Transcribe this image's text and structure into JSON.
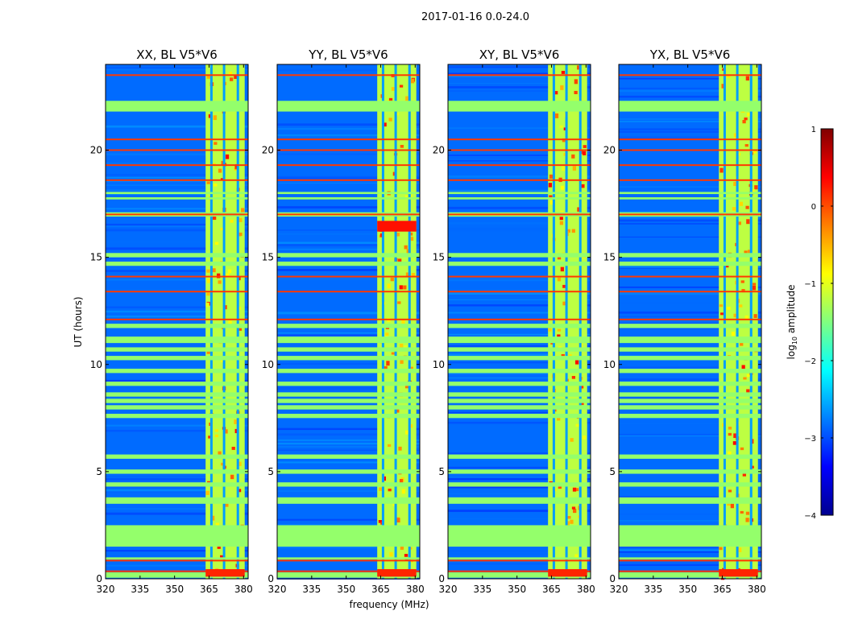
{
  "chart_data": {
    "type": "heatmap",
    "suptitle": "2017-01-16 0.0-24.0",
    "xlabel": "frequency (MHz)",
    "ylabel": "UT (hours)",
    "xlim": [
      320,
      382
    ],
    "ylim": [
      0,
      24
    ],
    "xticks": [
      320,
      335,
      350,
      365,
      380
    ],
    "yticks": [
      0,
      5,
      10,
      15,
      20
    ],
    "panels": [
      {
        "title": "XX, BL V5*V6"
      },
      {
        "title": "YY, BL V5*V6"
      },
      {
        "title": "XY, BL V5*V6"
      },
      {
        "title": "YX, BL V5*V6"
      }
    ],
    "colorbar": {
      "label_prefix": "log",
      "label_sub": "10",
      "label_suffix": " amplitude",
      "range": [
        -4,
        1
      ],
      "ticks": [
        "1",
        "0",
        "−1",
        "−2",
        "−3",
        "−4"
      ],
      "colormap": "jet"
    },
    "rfi_band_mhz": [
      363.5,
      380.5
    ],
    "rfi_channel_gaps_mhz": [
      365.5,
      371,
      377
    ],
    "flagged_time_bands_hours": [
      [
        0.05,
        0.3
      ],
      [
        0.9,
        1.0
      ],
      [
        1.5,
        2.5
      ],
      [
        3.5,
        3.8
      ],
      [
        4.3,
        4.5
      ],
      [
        4.9,
        5.1
      ],
      [
        5.6,
        5.8
      ],
      [
        7.5,
        7.7
      ],
      [
        7.9,
        8.1
      ],
      [
        8.2,
        8.4
      ],
      [
        8.5,
        8.7
      ],
      [
        9.0,
        9.2
      ],
      [
        9.6,
        9.8
      ],
      [
        10.2,
        10.4
      ],
      [
        10.6,
        10.8
      ],
      [
        11.0,
        11.3
      ],
      [
        11.7,
        11.9
      ],
      [
        14.6,
        14.8
      ],
      [
        15.0,
        15.2
      ],
      [
        16.9,
        17.1
      ],
      [
        17.7,
        17.8
      ],
      [
        17.95,
        18.05
      ],
      [
        21.8,
        22.3
      ]
    ],
    "strong_rfi_lines_hours": [
      0.35,
      0.85,
      12.1,
      13.4,
      14.1,
      17.0,
      18.6,
      19.3,
      20.0,
      20.5,
      23.5
    ],
    "hot_spots": [
      {
        "panel": "YY",
        "ut_range": [
          16.2,
          16.7
        ],
        "level": 0.3
      }
    ]
  }
}
